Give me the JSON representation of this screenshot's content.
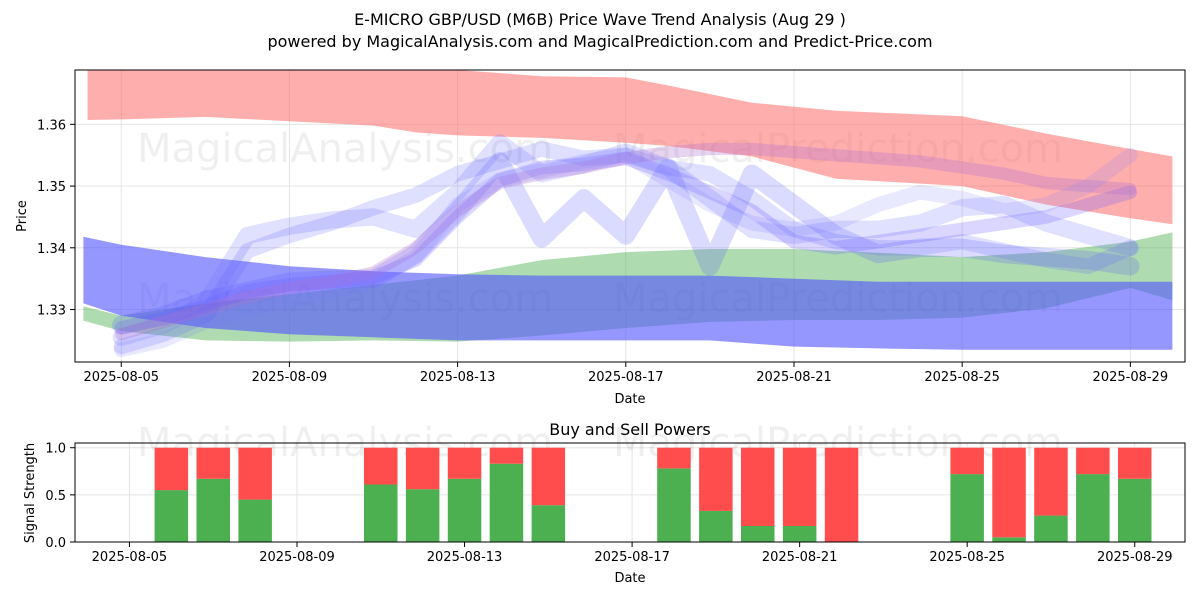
{
  "colors": {
    "upper_band": "#ff6b6b",
    "lower_band": "#4caf50",
    "wave": "#5050ff",
    "buy": "#4caf50",
    "sell": "#ff4d4d",
    "grid": "#e5e5e5",
    "axis": "#000000"
  },
  "watermarks": [
    "MagicalAnalysis.com",
    "MagicalPrediction.com"
  ],
  "chart_data": [
    {
      "type": "area",
      "title": "E-MICRO GBP/USD (M6B) Price Wave Trend Analysis (Aug 29 )",
      "subtitle": "powered by MagicalAnalysis.com and MagicalPrediction.com and Predict-Price.com",
      "xlabel": "Date",
      "ylabel": "Price",
      "x_range": [
        -1.1,
        25.3
      ],
      "ylim": [
        1.3215,
        1.3688
      ],
      "xticks": [
        {
          "x": 0,
          "label": "2025-08-05"
        },
        {
          "x": 4,
          "label": "2025-08-09"
        },
        {
          "x": 8,
          "label": "2025-08-13"
        },
        {
          "x": 12,
          "label": "2025-08-17"
        },
        {
          "x": 16,
          "label": "2025-08-21"
        },
        {
          "x": 20,
          "label": "2025-08-25"
        },
        {
          "x": 24,
          "label": "2025-08-29"
        }
      ],
      "yticks": [
        {
          "y": 1.33,
          "label": "1.33"
        },
        {
          "y": 1.34,
          "label": "1.34"
        },
        {
          "y": 1.35,
          "label": "1.35"
        },
        {
          "y": 1.36,
          "label": "1.36"
        }
      ],
      "grid": true,
      "bands": [
        {
          "name": "upper-band",
          "color": "#ff6b6b",
          "opacity": 0.55,
          "x": [
            -0.8,
            0,
            2,
            4,
            6,
            7,
            8,
            10,
            12,
            13,
            15,
            17,
            20,
            22,
            24,
            25
          ],
          "high": [
            1.369,
            1.369,
            1.369,
            1.369,
            1.369,
            1.369,
            1.3688,
            1.3678,
            1.3676,
            1.3663,
            1.3635,
            1.3622,
            1.3613,
            1.3585,
            1.356,
            1.3548
          ],
          "low": [
            1.3607,
            1.3608,
            1.3612,
            1.3605,
            1.3598,
            1.3587,
            1.3582,
            1.3578,
            1.357,
            1.3565,
            1.3548,
            1.3512,
            1.35,
            1.347,
            1.3448,
            1.3438
          ]
        },
        {
          "name": "lower-band",
          "color": "#4caf50",
          "opacity": 0.45,
          "x": [
            -0.9,
            0,
            2,
            4,
            6,
            8,
            10,
            12,
            14,
            16,
            18,
            20,
            22,
            24,
            25
          ],
          "high": [
            1.3305,
            1.329,
            1.331,
            1.3325,
            1.334,
            1.3355,
            1.338,
            1.3393,
            1.3398,
            1.3398,
            1.3392,
            1.3385,
            1.3393,
            1.341,
            1.3425
          ],
          "low": [
            1.3282,
            1.3265,
            1.325,
            1.3248,
            1.325,
            1.3248,
            1.3258,
            1.327,
            1.328,
            1.3283,
            1.3283,
            1.3287,
            1.3302,
            1.3335,
            1.3315
          ]
        },
        {
          "name": "main-wave",
          "color": "#5050ff",
          "opacity": 0.6,
          "x": [
            -0.9,
            0,
            2,
            4,
            6,
            8,
            10,
            12,
            14,
            16,
            18,
            20,
            22,
            24,
            25
          ],
          "high": [
            1.3418,
            1.3405,
            1.3385,
            1.337,
            1.3362,
            1.3357,
            1.3355,
            1.3355,
            1.3355,
            1.335,
            1.3345,
            1.3345,
            1.3345,
            1.3345,
            1.3345
          ],
          "low": [
            1.331,
            1.329,
            1.327,
            1.326,
            1.3255,
            1.325,
            1.325,
            1.325,
            1.325,
            1.324,
            1.3237,
            1.3235,
            1.3235,
            1.3235,
            1.3235
          ]
        }
      ],
      "series": [
        {
          "name": "wave-1",
          "color": "#6a5cff",
          "width": 0.0022,
          "opacity": 0.25,
          "x": [
            0,
            1,
            2,
            3,
            4,
            5,
            6,
            7,
            8,
            9,
            10,
            11,
            12,
            13,
            14,
            15,
            16,
            17,
            18,
            19,
            20,
            21,
            22,
            23,
            24
          ],
          "y": [
            1.327,
            1.3285,
            1.3305,
            1.333,
            1.334,
            1.3345,
            1.3352,
            1.338,
            1.345,
            1.351,
            1.353,
            1.3535,
            1.3545,
            1.352,
            1.349,
            1.346,
            1.341,
            1.34,
            1.341,
            1.342,
            1.343,
            1.344,
            1.345,
            1.347,
            1.349
          ]
        },
        {
          "name": "wave-2",
          "color": "#7070ff",
          "width": 0.0028,
          "opacity": 0.22,
          "x": [
            0,
            1,
            2,
            3,
            4,
            5,
            6,
            7,
            8,
            9,
            10,
            11,
            12,
            13,
            14,
            15,
            16,
            17,
            18,
            19,
            20,
            21,
            22,
            23,
            24
          ],
          "y": [
            1.3255,
            1.3275,
            1.331,
            1.342,
            1.3435,
            1.3445,
            1.345,
            1.343,
            1.349,
            1.357,
            1.352,
            1.3535,
            1.3555,
            1.353,
            1.348,
            1.343,
            1.342,
            1.343,
            1.343,
            1.344,
            1.3465,
            1.347,
            1.344,
            1.342,
            1.34
          ]
        },
        {
          "name": "wave-3",
          "color": "#6060ff",
          "width": 0.0025,
          "opacity": 0.2,
          "x": [
            0,
            1,
            2,
            3,
            4,
            5,
            6,
            7,
            8,
            9,
            10,
            11,
            12,
            13,
            14,
            15,
            16,
            17,
            18,
            19,
            20,
            21,
            22,
            23,
            24
          ],
          "y": [
            1.324,
            1.326,
            1.329,
            1.3395,
            1.342,
            1.344,
            1.3465,
            1.3485,
            1.352,
            1.354,
            1.356,
            1.3545,
            1.355,
            1.353,
            1.352,
            1.348,
            1.343,
            1.341,
            1.34,
            1.34,
            1.341,
            1.3395,
            1.338,
            1.337,
            1.34
          ]
        },
        {
          "name": "wave-4",
          "color": "#5a5aff",
          "width": 0.003,
          "opacity": 0.22,
          "x": [
            0,
            1,
            2,
            3,
            4,
            5,
            6,
            7,
            8,
            9,
            10,
            11,
            12,
            13,
            14,
            15,
            16,
            17,
            18,
            19,
            20,
            21,
            22,
            23,
            24
          ],
          "y": [
            1.3275,
            1.329,
            1.3315,
            1.333,
            1.3345,
            1.3348,
            1.335,
            1.339,
            1.346,
            1.354,
            1.3415,
            1.348,
            1.342,
            1.353,
            1.337,
            1.352,
            1.347,
            1.342,
            1.339,
            1.34,
            1.34,
            1.339,
            1.3385,
            1.338,
            1.337
          ]
        },
        {
          "name": "wave-5",
          "color": "#b070d0",
          "width": 0.002,
          "opacity": 0.3,
          "x": [
            0,
            1,
            2,
            3,
            4,
            5,
            6,
            7,
            8,
            9,
            10,
            11,
            12,
            13,
            14,
            15,
            16,
            17,
            18,
            19,
            20,
            21,
            22,
            23,
            24
          ],
          "y": [
            1.326,
            1.328,
            1.33,
            1.332,
            1.3335,
            1.3345,
            1.336,
            1.34,
            1.346,
            1.3505,
            1.352,
            1.353,
            1.3545,
            1.3555,
            1.356,
            1.356,
            1.3555,
            1.355,
            1.3545,
            1.354,
            1.353,
            1.352,
            1.3505,
            1.35,
            1.3495
          ]
        },
        {
          "name": "wave-6",
          "color": "#8080ff",
          "width": 0.0024,
          "opacity": 0.18,
          "x": [
            0,
            1,
            2,
            3,
            4,
            5,
            6,
            7,
            8,
            9,
            10,
            11,
            12,
            13,
            14,
            15,
            16,
            17,
            18,
            19,
            20,
            21,
            22,
            23,
            24
          ],
          "y": [
            1.3235,
            1.325,
            1.328,
            1.33,
            1.3315,
            1.333,
            1.3345,
            1.3385,
            1.347,
            1.351,
            1.3525,
            1.354,
            1.355,
            1.351,
            1.347,
            1.344,
            1.343,
            1.344,
            1.347,
            1.349,
            1.348,
            1.346,
            1.347,
            1.35,
            1.355
          ]
        }
      ]
    },
    {
      "type": "bar",
      "title": "Buy and Sell Powers",
      "xlabel": "Date",
      "ylabel": "Signal Strength",
      "x_range": [
        -1.3,
        25.2
      ],
      "ylim": [
        0,
        1.05
      ],
      "xticks": [
        {
          "x": 0,
          "label": "2025-08-05"
        },
        {
          "x": 4,
          "label": "2025-08-09"
        },
        {
          "x": 8,
          "label": "2025-08-13"
        },
        {
          "x": 12,
          "label": "2025-08-17"
        },
        {
          "x": 16,
          "label": "2025-08-21"
        },
        {
          "x": 20,
          "label": "2025-08-25"
        },
        {
          "x": 24,
          "label": "2025-08-29"
        }
      ],
      "yticks": [
        {
          "y": 0.0,
          "label": "0.0"
        },
        {
          "y": 0.5,
          "label": "0.5"
        },
        {
          "y": 1.0,
          "label": "1.0"
        }
      ],
      "grid": true,
      "bar_width": 0.8,
      "x": [
        1,
        2,
        3,
        6,
        7,
        8,
        9,
        10,
        13,
        14,
        15,
        16,
        17,
        20,
        21,
        22,
        23,
        24
      ],
      "dates": [
        "2025-08-06",
        "2025-08-07",
        "2025-08-08",
        "2025-08-11",
        "2025-08-12",
        "2025-08-13",
        "2025-08-14",
        "2025-08-15",
        "2025-08-18",
        "2025-08-19",
        "2025-08-20",
        "2025-08-21",
        "2025-08-22",
        "2025-08-25",
        "2025-08-26",
        "2025-08-27",
        "2025-08-28",
        "2025-08-29"
      ],
      "buy": [
        0.55,
        0.67,
        0.45,
        0.61,
        0.56,
        0.67,
        0.83,
        0.39,
        0.78,
        0.33,
        0.17,
        0.17,
        0.0,
        0.72,
        0.05,
        0.28,
        0.72,
        0.67
      ],
      "sell": [
        0.45,
        0.33,
        0.55,
        0.39,
        0.44,
        0.33,
        0.17,
        0.61,
        0.22,
        0.67,
        0.83,
        0.83,
        1.0,
        0.28,
        0.95,
        0.72,
        0.28,
        0.33
      ]
    }
  ]
}
